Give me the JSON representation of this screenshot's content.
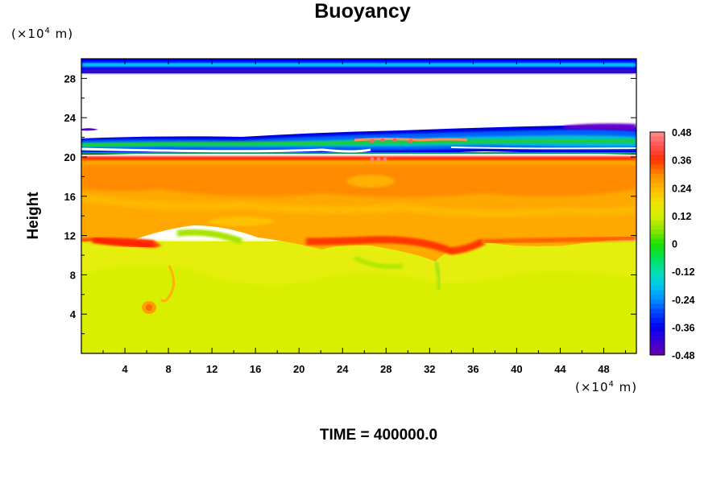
{
  "chart_data": {
    "type": "heatmap",
    "title": "Buoyancy",
    "ylabel": "Height",
    "x_unit": {
      "prefix": "(×10",
      "exponent": "4",
      "suffix": " m)"
    },
    "y_unit": {
      "prefix": "(×10",
      "exponent": "4",
      "suffix": " m)"
    },
    "xlim": [
      0,
      51
    ],
    "ylim": [
      0,
      30
    ],
    "x_ticks": [
      "4",
      "8",
      "12",
      "16",
      "20",
      "24",
      "28",
      "32",
      "36",
      "40",
      "44",
      "48"
    ],
    "y_ticks": [
      "4",
      "8",
      "12",
      "16",
      "20",
      "24",
      "28"
    ],
    "x_tick_values": [
      4,
      8,
      12,
      16,
      20,
      24,
      28,
      32,
      36,
      40,
      44,
      48
    ],
    "y_tick_values": [
      4,
      8,
      12,
      16,
      20,
      24,
      28
    ],
    "colorbar": {
      "min": -0.48,
      "max": 0.48,
      "tick_labels": [
        "0.48",
        "0.36",
        "0.24",
        "0.12",
        "0",
        "-0.12",
        "-0.24",
        "-0.36",
        "-0.48"
      ],
      "tick_values": [
        0.48,
        0.36,
        0.24,
        0.12,
        0,
        -0.12,
        -0.24,
        -0.36,
        -0.48
      ]
    },
    "layers": [
      {
        "height_range": [
          0,
          8
        ],
        "buoyancy": 0.15
      },
      {
        "height_range": [
          8,
          10
        ],
        "buoyancy": 0.16
      },
      {
        "height_range": [
          10,
          12
        ],
        "buoyancy": 0.34
      },
      {
        "height_range": [
          12,
          19.5
        ],
        "buoyancy": 0.27
      },
      {
        "height_range": [
          19.5,
          20
        ],
        "buoyancy": 0.37
      },
      {
        "height_range": [
          20,
          22.5
        ],
        "buoyancy": -0.25
      },
      {
        "height_range": [
          22.5,
          29
        ],
        "buoyancy": null
      },
      {
        "height_range": [
          29,
          30
        ],
        "buoyancy": -0.38
      }
    ],
    "footer": "TIME = 400000.0"
  }
}
